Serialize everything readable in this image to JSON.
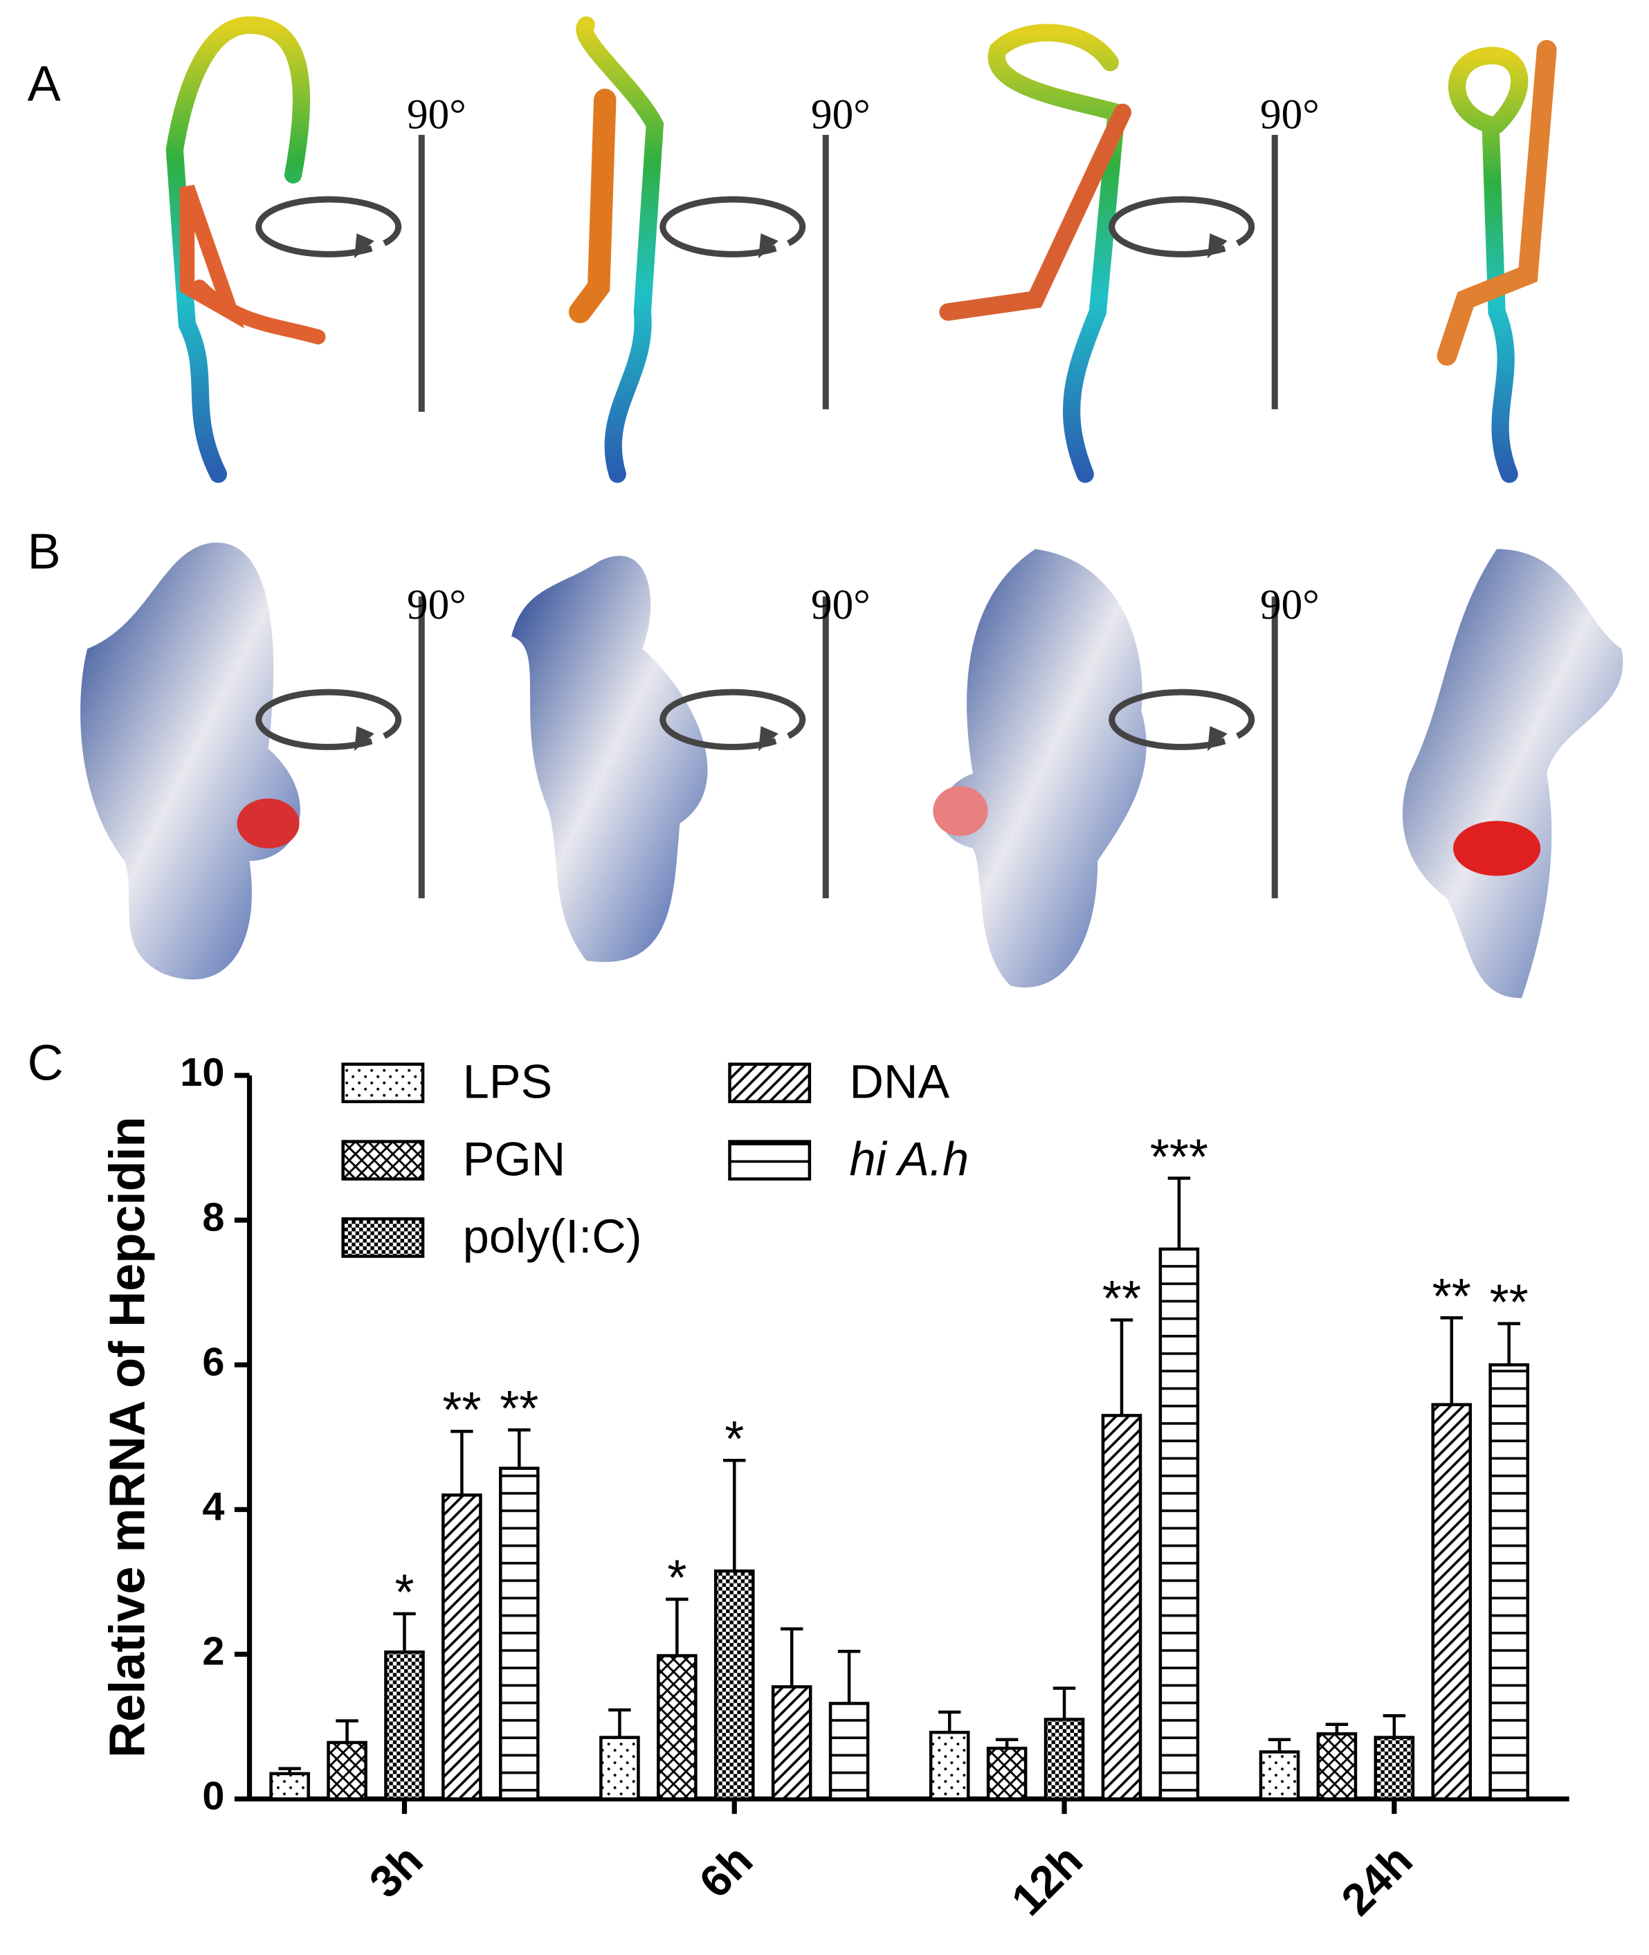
{
  "panel_labels": [
    "A",
    "B",
    "C"
  ],
  "rotation_label": "90°",
  "chart_data": {
    "type": "bar",
    "y_label": "Relative mRNA of Hepcidin",
    "categories": [
      "3h",
      "6h",
      "12h",
      "24h"
    ],
    "ylim": [
      0,
      10
    ],
    "yticks": [
      0,
      2,
      4,
      6,
      8,
      10
    ],
    "series": [
      {
        "name": "LPS",
        "pattern": "dots",
        "values": [
          0.35,
          0.85,
          0.92,
          0.65
        ],
        "errors": [
          0.07,
          0.38,
          0.28,
          0.17
        ],
        "significance": [
          null,
          null,
          null,
          null
        ]
      },
      {
        "name": "PGN",
        "pattern": "crosshatch",
        "values": [
          0.78,
          1.98,
          0.7,
          0.9
        ],
        "errors": [
          0.3,
          0.78,
          0.12,
          0.13
        ],
        "significance": [
          null,
          "*",
          null,
          null
        ]
      },
      {
        "name": "poly(I:C)",
        "pattern": "checker",
        "values": [
          2.03,
          3.15,
          1.1,
          0.85
        ],
        "errors": [
          0.53,
          1.53,
          0.43,
          0.3
        ],
        "significance": [
          "*",
          "*",
          null,
          null
        ]
      },
      {
        "name": "DNA",
        "pattern": "diagonal",
        "values": [
          4.2,
          1.55,
          5.3,
          5.45
        ],
        "errors": [
          0.88,
          0.8,
          1.32,
          1.2
        ],
        "significance": [
          "**",
          null,
          "**",
          "**"
        ]
      },
      {
        "name": "hi A.h",
        "pattern": "horizontal",
        "italic": true,
        "values": [
          4.57,
          1.32,
          7.6,
          6.0
        ],
        "errors": [
          0.53,
          0.72,
          0.98,
          0.57
        ],
        "significance": [
          "**",
          null,
          "***",
          "**"
        ]
      }
    ]
  }
}
